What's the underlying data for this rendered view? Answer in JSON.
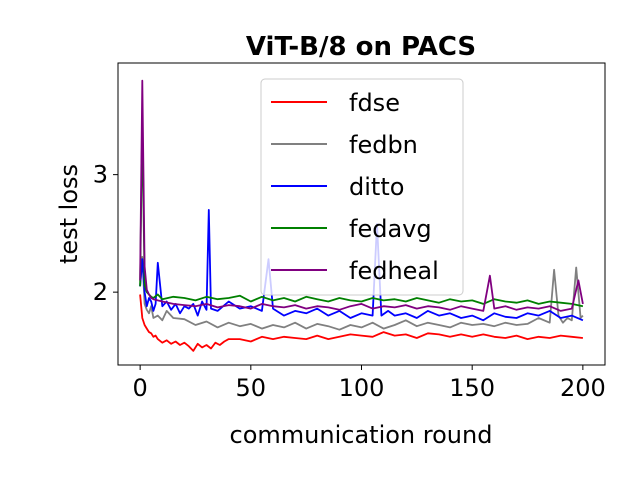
{
  "chart_data": {
    "type": "line",
    "title": "ViT-B/8 on PACS",
    "xlabel": "communication round",
    "ylabel": "test loss",
    "xlim": [
      -10,
      210
    ],
    "ylim": [
      1.38,
      3.95
    ],
    "xticks": [
      0,
      50,
      100,
      150,
      200
    ],
    "yticks": [
      2,
      3
    ],
    "grid": false,
    "legend_position": "top-center",
    "series": [
      {
        "name": "fdse",
        "color": "#ff0000",
        "x": [
          0,
          1,
          2,
          3,
          4,
          5,
          6,
          7,
          8,
          10,
          12,
          14,
          16,
          18,
          20,
          22,
          24,
          26,
          28,
          30,
          32,
          34,
          36,
          38,
          40,
          45,
          50,
          55,
          60,
          65,
          70,
          75,
          80,
          85,
          90,
          95,
          100,
          105,
          110,
          115,
          120,
          125,
          130,
          135,
          140,
          145,
          150,
          155,
          160,
          165,
          170,
          175,
          180,
          185,
          190,
          195,
          200
        ],
        "y": [
          1.98,
          1.78,
          1.72,
          1.69,
          1.66,
          1.65,
          1.62,
          1.63,
          1.6,
          1.57,
          1.59,
          1.56,
          1.58,
          1.55,
          1.57,
          1.54,
          1.5,
          1.56,
          1.53,
          1.55,
          1.52,
          1.57,
          1.55,
          1.58,
          1.6,
          1.6,
          1.58,
          1.62,
          1.6,
          1.62,
          1.61,
          1.6,
          1.63,
          1.6,
          1.62,
          1.64,
          1.63,
          1.62,
          1.66,
          1.63,
          1.64,
          1.61,
          1.65,
          1.64,
          1.62,
          1.64,
          1.62,
          1.64,
          1.62,
          1.61,
          1.63,
          1.6,
          1.62,
          1.61,
          1.63,
          1.62,
          1.61
        ]
      },
      {
        "name": "fedbn",
        "color": "#808080",
        "x": [
          0,
          1,
          2,
          3,
          4,
          5,
          6,
          8,
          10,
          12,
          15,
          20,
          25,
          30,
          35,
          40,
          45,
          50,
          55,
          60,
          65,
          70,
          75,
          80,
          85,
          90,
          95,
          100,
          105,
          110,
          115,
          120,
          125,
          130,
          135,
          140,
          145,
          150,
          155,
          160,
          165,
          170,
          175,
          180,
          185,
          187,
          189,
          191,
          193,
          195,
          197,
          199,
          200
        ],
        "y": [
          2.05,
          2.3,
          1.9,
          1.85,
          1.82,
          1.88,
          1.78,
          1.8,
          1.76,
          1.84,
          1.78,
          1.77,
          1.72,
          1.75,
          1.7,
          1.74,
          1.71,
          1.73,
          1.69,
          1.72,
          1.7,
          1.74,
          1.69,
          1.73,
          1.71,
          1.68,
          1.72,
          1.7,
          1.74,
          1.69,
          1.72,
          1.76,
          1.71,
          1.74,
          1.72,
          1.7,
          1.74,
          1.72,
          1.73,
          1.71,
          1.74,
          1.72,
          1.73,
          1.78,
          1.74,
          2.19,
          1.8,
          1.74,
          1.78,
          1.76,
          2.21,
          1.78,
          1.8
        ]
      },
      {
        "name": "ditto",
        "color": "#0000ff",
        "x": [
          0,
          1,
          2,
          3,
          4,
          5,
          6,
          7,
          8,
          10,
          12,
          14,
          16,
          18,
          20,
          22,
          24,
          26,
          28,
          30,
          31,
          32,
          35,
          40,
          45,
          50,
          55,
          58,
          60,
          65,
          70,
          75,
          80,
          85,
          90,
          95,
          100,
          105,
          107,
          109,
          112,
          115,
          120,
          125,
          130,
          135,
          140,
          145,
          150,
          155,
          160,
          165,
          170,
          175,
          180,
          185,
          190,
          195,
          200
        ],
        "y": [
          2.05,
          2.28,
          2.0,
          1.88,
          1.95,
          1.92,
          1.84,
          1.9,
          2.25,
          1.88,
          1.92,
          1.85,
          1.9,
          1.82,
          1.88,
          1.86,
          1.9,
          1.8,
          1.92,
          1.85,
          2.7,
          1.86,
          1.84,
          1.92,
          1.86,
          1.88,
          1.84,
          2.28,
          1.86,
          1.8,
          1.84,
          1.82,
          1.86,
          1.8,
          1.84,
          1.78,
          1.82,
          1.8,
          2.58,
          1.8,
          1.84,
          1.8,
          1.82,
          1.78,
          1.84,
          1.8,
          1.82,
          1.78,
          1.8,
          1.76,
          1.82,
          1.79,
          1.78,
          1.82,
          1.8,
          1.84,
          1.78,
          1.8,
          1.76
        ]
      },
      {
        "name": "fedavg",
        "color": "#008000",
        "x": [
          0,
          1,
          2,
          3,
          4,
          5,
          6,
          8,
          10,
          15,
          20,
          25,
          30,
          35,
          40,
          45,
          50,
          55,
          60,
          65,
          70,
          75,
          80,
          85,
          90,
          95,
          100,
          105,
          110,
          115,
          120,
          125,
          130,
          135,
          140,
          145,
          150,
          155,
          160,
          165,
          170,
          175,
          180,
          185,
          190,
          195,
          200
        ],
        "y": [
          2.05,
          3.48,
          2.06,
          2.0,
          1.98,
          1.96,
          1.95,
          1.98,
          1.94,
          1.96,
          1.95,
          1.93,
          1.96,
          1.94,
          1.95,
          1.97,
          1.92,
          1.96,
          1.93,
          1.95,
          1.92,
          1.96,
          1.94,
          1.92,
          1.95,
          1.93,
          1.92,
          1.95,
          1.93,
          1.94,
          1.92,
          1.95,
          1.93,
          1.91,
          1.94,
          1.92,
          1.93,
          1.9,
          1.94,
          1.92,
          1.91,
          1.93,
          1.9,
          1.92,
          1.91,
          1.9,
          1.88
        ]
      },
      {
        "name": "fedheal",
        "color": "#800080",
        "x": [
          0,
          1,
          2,
          3,
          4,
          5,
          6,
          8,
          10,
          15,
          20,
          25,
          30,
          35,
          40,
          45,
          50,
          55,
          60,
          65,
          70,
          75,
          80,
          85,
          90,
          95,
          100,
          105,
          110,
          115,
          120,
          125,
          130,
          135,
          140,
          145,
          150,
          155,
          158,
          160,
          165,
          170,
          175,
          180,
          185,
          190,
          195,
          198,
          200
        ],
        "y": [
          2.1,
          3.8,
          2.22,
          2.02,
          1.98,
          1.95,
          1.94,
          1.93,
          1.92,
          1.9,
          1.89,
          1.88,
          1.9,
          1.87,
          1.89,
          1.88,
          1.86,
          1.9,
          1.88,
          1.87,
          1.89,
          1.86,
          1.88,
          1.87,
          1.85,
          1.88,
          1.9,
          1.86,
          1.88,
          1.87,
          1.89,
          1.86,
          1.88,
          1.87,
          1.85,
          1.88,
          1.86,
          1.84,
          2.14,
          1.86,
          1.88,
          1.85,
          1.87,
          1.86,
          1.88,
          1.84,
          1.86,
          2.1,
          1.9
        ]
      }
    ]
  }
}
